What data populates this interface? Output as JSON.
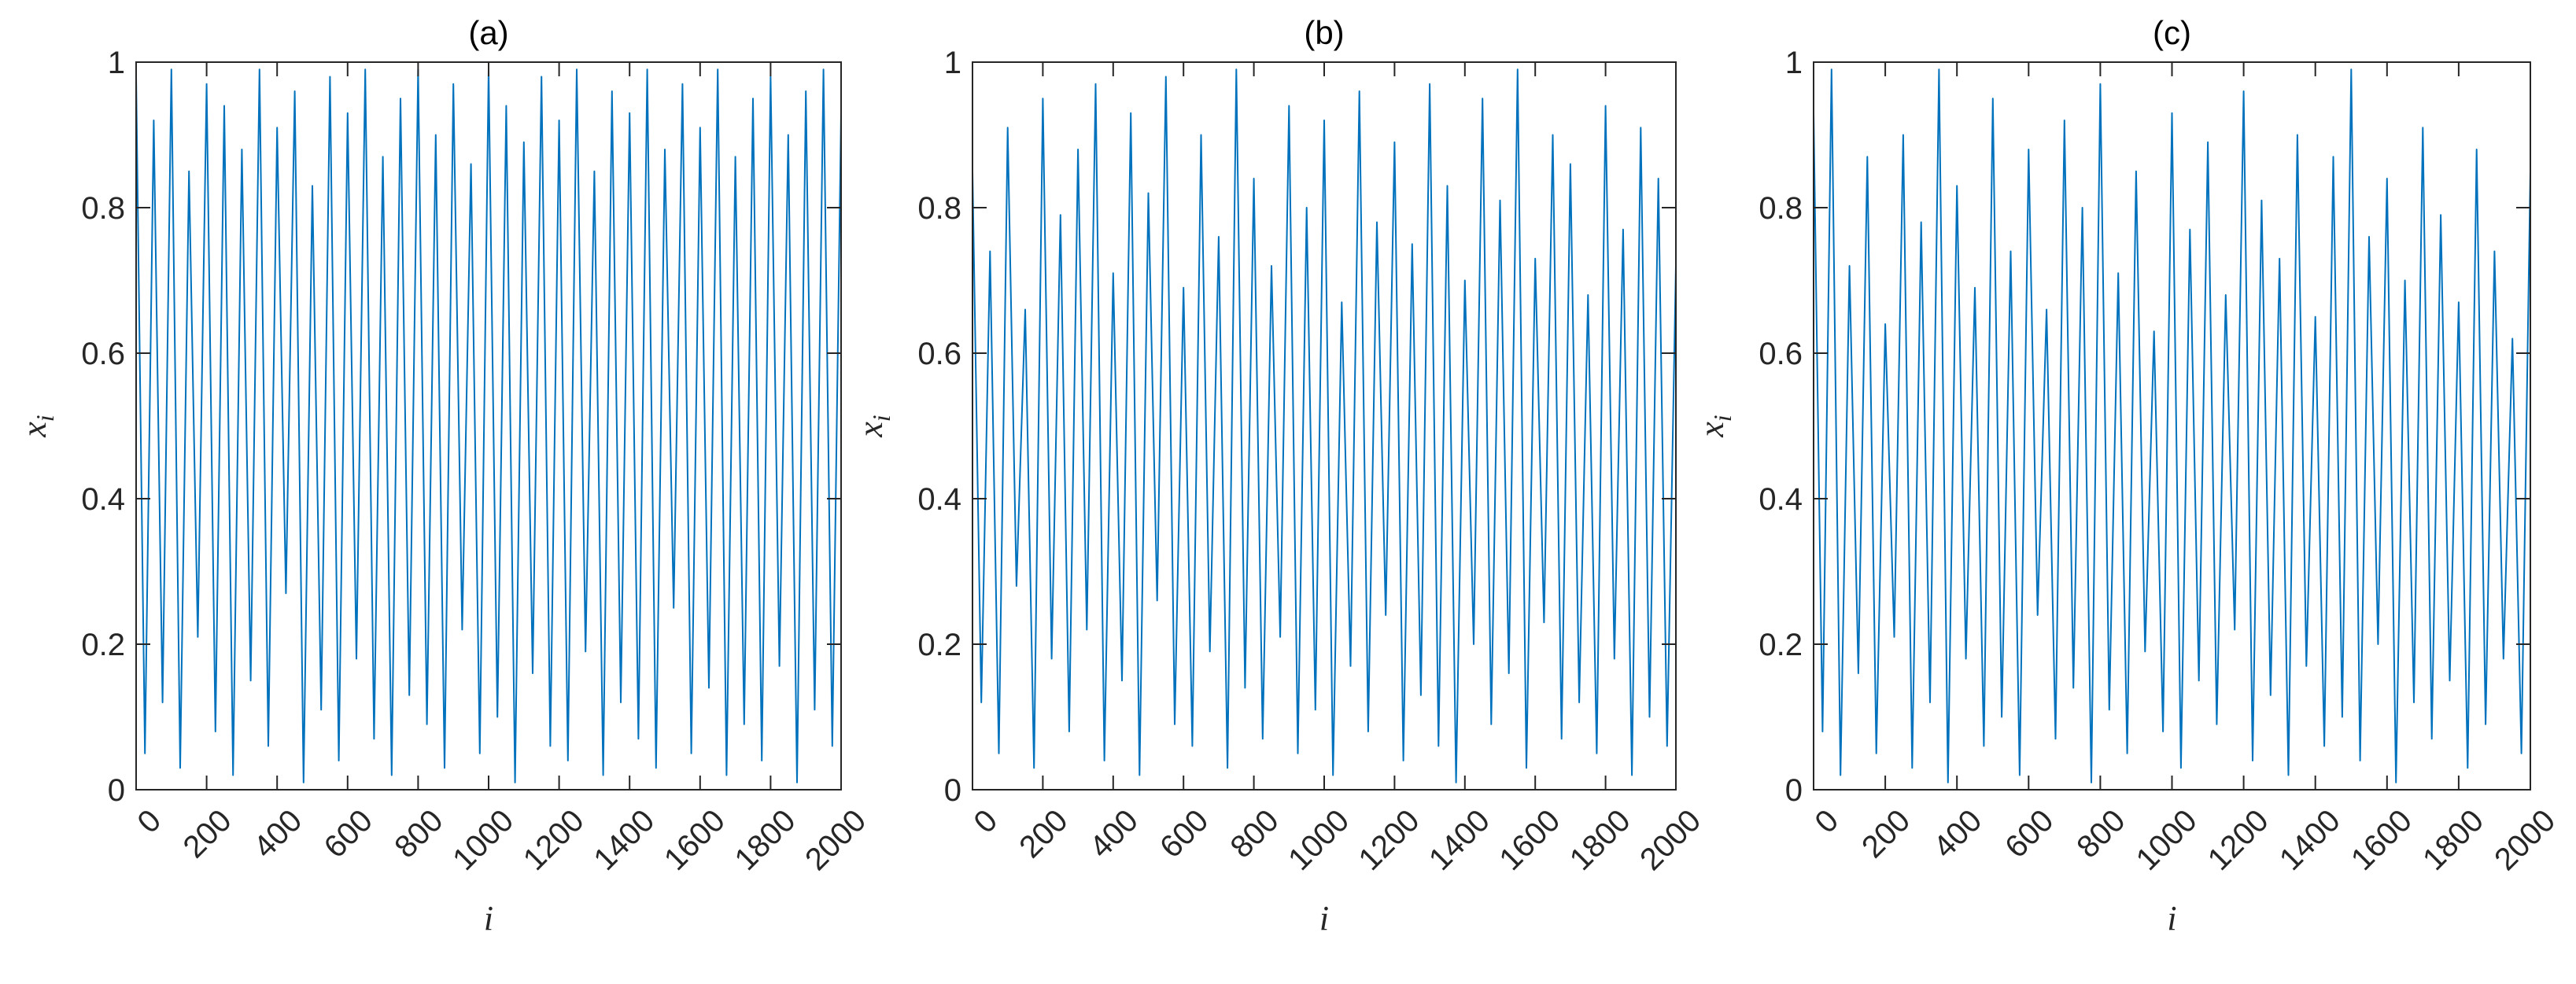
{
  "chart_data": [
    {
      "type": "line",
      "title": "(a)",
      "xlabel": "i",
      "ylabel": "x",
      "ylabel_subscript": "i",
      "color": "#0072bd",
      "xlim": [
        0,
        2000
      ],
      "ylim": [
        0,
        1
      ],
      "xticks": [
        0,
        200,
        400,
        600,
        800,
        1000,
        1200,
        1400,
        1600,
        1800,
        2000
      ],
      "yticks": [
        0,
        0.2,
        0.4,
        0.6,
        0.8,
        1
      ],
      "x": [
        0,
        25,
        50,
        75,
        100,
        125,
        150,
        175,
        200,
        225,
        250,
        275,
        300,
        325,
        350,
        375,
        400,
        425,
        450,
        475,
        500,
        525,
        550,
        575,
        600,
        625,
        650,
        675,
        700,
        725,
        750,
        775,
        800,
        825,
        850,
        875,
        900,
        925,
        950,
        975,
        1000,
        1025,
        1050,
        1075,
        1100,
        1125,
        1150,
        1175,
        1200,
        1225,
        1250,
        1275,
        1300,
        1325,
        1350,
        1375,
        1400,
        1425,
        1450,
        1475,
        1500,
        1525,
        1550,
        1575,
        1600,
        1625,
        1650,
        1675,
        1700,
        1725,
        1750,
        1775,
        1800,
        1825,
        1850,
        1875,
        1900,
        1925,
        1950,
        1975,
        2000
      ],
      "values": [
        0.98,
        0.05,
        0.92,
        0.12,
        0.99,
        0.03,
        0.85,
        0.21,
        0.97,
        0.08,
        0.94,
        0.02,
        0.88,
        0.15,
        0.99,
        0.06,
        0.91,
        0.27,
        0.96,
        0.01,
        0.83,
        0.11,
        0.98,
        0.04,
        0.93,
        0.18,
        0.99,
        0.07,
        0.87,
        0.02,
        0.95,
        0.13,
        0.99,
        0.09,
        0.9,
        0.03,
        0.97,
        0.22,
        0.86,
        0.05,
        0.99,
        0.1,
        0.94,
        0.01,
        0.89,
        0.16,
        0.98,
        0.06,
        0.92,
        0.04,
        0.99,
        0.19,
        0.85,
        0.02,
        0.96,
        0.12,
        0.93,
        0.07,
        0.99,
        0.03,
        0.88,
        0.25,
        0.97,
        0.05,
        0.91,
        0.14,
        0.99,
        0.02,
        0.87,
        0.09,
        0.95,
        0.04,
        0.98,
        0.17,
        0.9,
        0.01,
        0.96,
        0.11,
        0.99,
        0.06,
        0.93
      ]
    },
    {
      "type": "line",
      "title": "(b)",
      "xlabel": "i",
      "ylabel": "x",
      "ylabel_subscript": "i",
      "color": "#0072bd",
      "xlim": [
        0,
        2000
      ],
      "ylim": [
        0,
        1
      ],
      "xticks": [
        0,
        200,
        400,
        600,
        800,
        1000,
        1200,
        1400,
        1600,
        1800,
        2000
      ],
      "yticks": [
        0,
        0.2,
        0.4,
        0.6,
        0.8,
        1
      ],
      "x": [
        0,
        25,
        50,
        75,
        100,
        125,
        150,
        175,
        200,
        225,
        250,
        275,
        300,
        325,
        350,
        375,
        400,
        425,
        450,
        475,
        500,
        525,
        550,
        575,
        600,
        625,
        650,
        675,
        700,
        725,
        750,
        775,
        800,
        825,
        850,
        875,
        900,
        925,
        950,
        975,
        1000,
        1025,
        1050,
        1075,
        1100,
        1125,
        1150,
        1175,
        1200,
        1225,
        1250,
        1275,
        1300,
        1325,
        1350,
        1375,
        1400,
        1425,
        1450,
        1475,
        1500,
        1525,
        1550,
        1575,
        1600,
        1625,
        1650,
        1675,
        1700,
        1725,
        1750,
        1775,
        1800,
        1825,
        1850,
        1875,
        1900,
        1925,
        1950,
        1975,
        2000
      ],
      "values": [
        0.85,
        0.12,
        0.74,
        0.05,
        0.91,
        0.28,
        0.66,
        0.03,
        0.95,
        0.18,
        0.79,
        0.08,
        0.88,
        0.22,
        0.97,
        0.04,
        0.71,
        0.15,
        0.93,
        0.02,
        0.82,
        0.26,
        0.98,
        0.09,
        0.69,
        0.06,
        0.9,
        0.19,
        0.76,
        0.03,
        0.99,
        0.14,
        0.84,
        0.07,
        0.72,
        0.21,
        0.94,
        0.05,
        0.8,
        0.11,
        0.92,
        0.02,
        0.67,
        0.17,
        0.96,
        0.08,
        0.78,
        0.24,
        0.89,
        0.04,
        0.75,
        0.13,
        0.97,
        0.06,
        0.83,
        0.01,
        0.7,
        0.2,
        0.95,
        0.09,
        0.81,
        0.16,
        0.99,
        0.03,
        0.73,
        0.23,
        0.9,
        0.07,
        0.86,
        0.12,
        0.68,
        0.05,
        0.94,
        0.18,
        0.77,
        0.02,
        0.91,
        0.1,
        0.84,
        0.06,
        0.72
      ]
    },
    {
      "type": "line",
      "title": "(c)",
      "xlabel": "i",
      "ylabel": "x",
      "ylabel_subscript": "i",
      "color": "#0072bd",
      "xlim": [
        0,
        2000
      ],
      "ylim": [
        0,
        1
      ],
      "xticks": [
        0,
        200,
        400,
        600,
        800,
        1000,
        1200,
        1400,
        1600,
        1800,
        2000
      ],
      "yticks": [
        0,
        0.2,
        0.4,
        0.6,
        0.8,
        1
      ],
      "x": [
        0,
        25,
        50,
        75,
        100,
        125,
        150,
        175,
        200,
        225,
        250,
        275,
        300,
        325,
        350,
        375,
        400,
        425,
        450,
        475,
        500,
        525,
        550,
        575,
        600,
        625,
        650,
        675,
        700,
        725,
        750,
        775,
        800,
        825,
        850,
        875,
        900,
        925,
        950,
        975,
        1000,
        1025,
        1050,
        1075,
        1100,
        1125,
        1150,
        1175,
        1200,
        1225,
        1250,
        1275,
        1300,
        1325,
        1350,
        1375,
        1400,
        1425,
        1450,
        1475,
        1500,
        1525,
        1550,
        1575,
        1600,
        1625,
        1650,
        1675,
        1700,
        1725,
        1750,
        1775,
        1800,
        1825,
        1850,
        1875,
        1900,
        1925,
        1950,
        1975,
        2000
      ],
      "values": [
        0.93,
        0.08,
        0.99,
        0.02,
        0.72,
        0.16,
        0.87,
        0.05,
        0.64,
        0.21,
        0.9,
        0.03,
        0.78,
        0.12,
        0.99,
        0.01,
        0.83,
        0.18,
        0.69,
        0.06,
        0.95,
        0.1,
        0.74,
        0.02,
        0.88,
        0.24,
        0.66,
        0.07,
        0.92,
        0.14,
        0.8,
        0.01,
        0.97,
        0.11,
        0.71,
        0.05,
        0.85,
        0.19,
        0.63,
        0.08,
        0.93,
        0.03,
        0.77,
        0.15,
        0.89,
        0.09,
        0.68,
        0.22,
        0.96,
        0.04,
        0.81,
        0.13,
        0.73,
        0.02,
        0.9,
        0.17,
        0.65,
        0.06,
        0.87,
        0.1,
        0.99,
        0.04,
        0.76,
        0.2,
        0.84,
        0.01,
        0.7,
        0.12,
        0.91,
        0.07,
        0.79,
        0.15,
        0.67,
        0.03,
        0.88,
        0.09,
        0.74,
        0.18,
        0.62,
        0.05,
        0.85
      ]
    }
  ]
}
